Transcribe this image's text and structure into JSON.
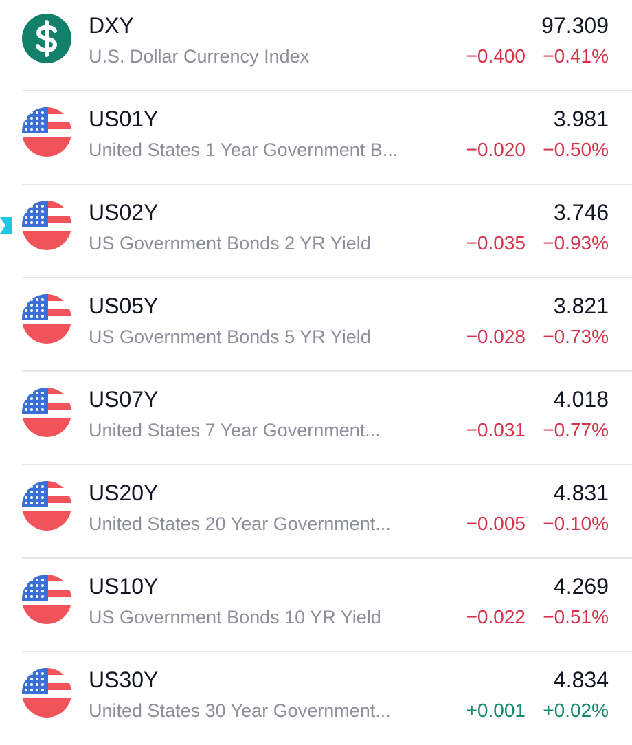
{
  "watchlist": {
    "rows": [
      {
        "symbol": "DXY",
        "name": "U.S. Dollar Currency Index",
        "price": "97.309",
        "change": "−0.400",
        "change_pct": "−0.41%",
        "direction": "down"
      },
      {
        "symbol": "US01Y",
        "name": "United States 1 Year Government B...",
        "price": "3.981",
        "change": "−0.020",
        "change_pct": "−0.50%",
        "direction": "down"
      },
      {
        "symbol": "US02Y",
        "name": "US Government Bonds 2 YR Yield",
        "price": "3.746",
        "change": "−0.035",
        "change_pct": "−0.93%",
        "direction": "down"
      },
      {
        "symbol": "US05Y",
        "name": "US Government Bonds 5 YR Yield",
        "price": "3.821",
        "change": "−0.028",
        "change_pct": "−0.73%",
        "direction": "down"
      },
      {
        "symbol": "US07Y",
        "name": "United States 7 Year Government...",
        "price": "4.018",
        "change": "−0.031",
        "change_pct": "−0.77%",
        "direction": "down"
      },
      {
        "symbol": "US20Y",
        "name": "United States 20 Year Government...",
        "price": "4.831",
        "change": "−0.005",
        "change_pct": "−0.10%",
        "direction": "down"
      },
      {
        "symbol": "US10Y",
        "name": "US Government Bonds 10 YR Yield",
        "price": "4.269",
        "change": "−0.022",
        "change_pct": "−0.51%",
        "direction": "down"
      },
      {
        "symbol": "US30Y",
        "name": "United States 30 Year Government...",
        "price": "4.834",
        "change": "+0.001",
        "change_pct": "+0.02%",
        "direction": "up"
      }
    ]
  }
}
